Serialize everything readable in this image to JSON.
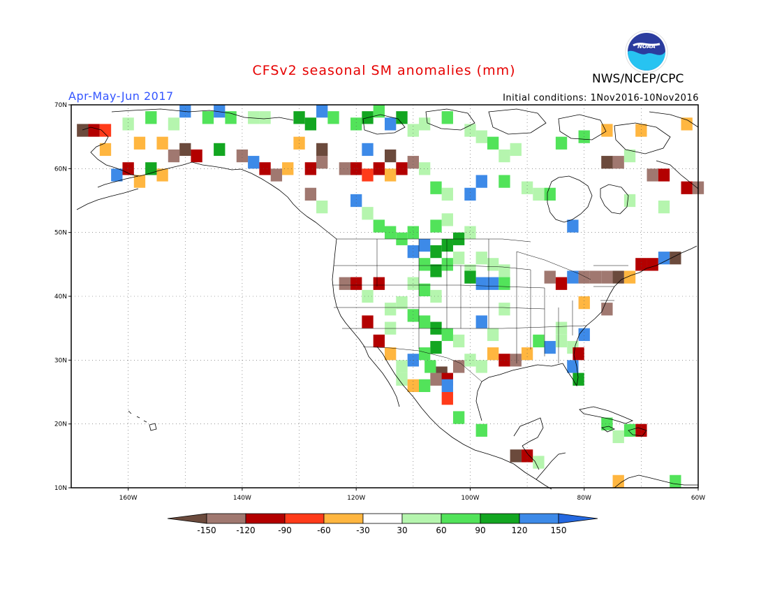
{
  "header": {
    "title": "CFSv2 seasonal SM anomalies (mm)",
    "agency": "NWS/NCEP/CPC",
    "season": "Apr-May-Jun 2017",
    "initial_conditions": "Initial conditions: 1Nov2016-10Nov2016",
    "logo_text": "NOAA"
  },
  "map": {
    "lat_labels": [
      "70N",
      "60N",
      "50N",
      "40N",
      "30N",
      "20N",
      "10N"
    ],
    "lon_labels": [
      "160W",
      "140W",
      "120W",
      "100W",
      "80W",
      "60W"
    ],
    "extent": {
      "lon": [
        -170,
        -60
      ],
      "lat": [
        10,
        70
      ]
    },
    "grid": "dotted, every 10 degrees"
  },
  "colorbar": {
    "labels": [
      "-150",
      "-120",
      "-90",
      "-60",
      "-30",
      "30",
      "60",
      "90",
      "120",
      "150"
    ],
    "colors": [
      "#6b4a3c",
      "#a07870",
      "#b30000",
      "#ff3b1a",
      "#ffb640",
      "#ffffff",
      "#b5f5ae",
      "#52e35a",
      "#13a621",
      "#3d8ae8",
      "#2468e0"
    ]
  },
  "chart_data": {
    "type": "heatmap",
    "title": "CFSv2 seasonal SM anomalies (mm)",
    "subtitle": "Apr-May-Jun 2017",
    "units": "mm",
    "bins": [
      {
        "range": "< -150",
        "color": "#6b4a3c"
      },
      {
        "range": "-150 to -120",
        "color": "#a07870"
      },
      {
        "range": "-120 to -90",
        "color": "#b30000"
      },
      {
        "range": "-90 to -60",
        "color": "#ff3b1a"
      },
      {
        "range": "-60 to -30",
        "color": "#ffb640"
      },
      {
        "range": "-30 to 30",
        "color": "#ffffff"
      },
      {
        "range": "30 to 60",
        "color": "#b5f5ae"
      },
      {
        "range": "60 to 90",
        "color": "#52e35a"
      },
      {
        "range": "90 to 120",
        "color": "#13a621"
      },
      {
        "range": "120 to 150",
        "color": "#3d8ae8"
      },
      {
        "range": "> 150",
        "color": "#2468e0"
      }
    ],
    "cells": [
      {
        "lon": -110,
        "lat": 47,
        "v": 130
      },
      {
        "lon": -108,
        "lat": 48,
        "v": 130
      },
      {
        "lon": -106,
        "lat": 47,
        "v": 100
      },
      {
        "lon": -104,
        "lat": 48,
        "v": 100
      },
      {
        "lon": -102,
        "lat": 49,
        "v": 95
      },
      {
        "lon": -112,
        "lat": 49,
        "v": 70
      },
      {
        "lon": -110,
        "lat": 50,
        "v": 80
      },
      {
        "lon": -106,
        "lat": 51,
        "v": 70
      },
      {
        "lon": -104,
        "lat": 52,
        "v": 50
      },
      {
        "lon": -100,
        "lat": 50,
        "v": 50
      },
      {
        "lon": -108,
        "lat": 45,
        "v": 60
      },
      {
        "lon": -106,
        "lat": 44,
        "v": 100
      },
      {
        "lon": -104,
        "lat": 45,
        "v": 70
      },
      {
        "lon": -102,
        "lat": 46,
        "v": 45
      },
      {
        "lon": -100,
        "lat": 44,
        "v": 45
      },
      {
        "lon": -98,
        "lat": 46,
        "v": 40
      },
      {
        "lon": -96,
        "lat": 45,
        "v": 40
      },
      {
        "lon": -94,
        "lat": 44,
        "v": 40
      },
      {
        "lon": -110,
        "lat": 42,
        "v": 40
      },
      {
        "lon": -108,
        "lat": 41,
        "v": 70
      },
      {
        "lon": -106,
        "lat": 40,
        "v": 40
      },
      {
        "lon": -112,
        "lat": 39,
        "v": 45
      },
      {
        "lon": -114,
        "lat": 38,
        "v": 40
      },
      {
        "lon": -110,
        "lat": 37,
        "v": 70
      },
      {
        "lon": -108,
        "lat": 36,
        "v": 70
      },
      {
        "lon": -106,
        "lat": 35,
        "v": 90
      },
      {
        "lon": -104,
        "lat": 34,
        "v": 70
      },
      {
        "lon": -102,
        "lat": 33,
        "v": 45
      },
      {
        "lon": -106,
        "lat": 32,
        "v": 100
      },
      {
        "lon": -108,
        "lat": 31,
        "v": 70
      },
      {
        "lon": -110,
        "lat": 30,
        "v": 130
      },
      {
        "lon": -107,
        "lat": 29,
        "v": 70
      },
      {
        "lon": -105,
        "lat": 28,
        "v": -160
      },
      {
        "lon": -106,
        "lat": 27,
        "v": -130
      },
      {
        "lon": -104,
        "lat": 27,
        "v": -100
      },
      {
        "lon": -104,
        "lat": 26,
        "v": 130
      },
      {
        "lon": -102,
        "lat": 29,
        "v": -130
      },
      {
        "lon": -108,
        "lat": 26,
        "v": 70
      },
      {
        "lon": -104,
        "lat": 24,
        "v": -70
      },
      {
        "lon": -112,
        "lat": 29,
        "v": 40
      },
      {
        "lon": -114,
        "lat": 31,
        "v": -45
      },
      {
        "lon": -112,
        "lat": 27,
        "v": 45
      },
      {
        "lon": -110,
        "lat": 26,
        "v": -45
      },
      {
        "lon": -100,
        "lat": 30,
        "v": 45
      },
      {
        "lon": -98,
        "lat": 29,
        "v": 40
      },
      {
        "lon": -96,
        "lat": 31,
        "v": -45
      },
      {
        "lon": -94,
        "lat": 30,
        "v": -100
      },
      {
        "lon": -92,
        "lat": 30,
        "v": -130
      },
      {
        "lon": -90,
        "lat": 31,
        "v": -45
      },
      {
        "lon": -88,
        "lat": 33,
        "v": 70
      },
      {
        "lon": -86,
        "lat": 32,
        "v": 130
      },
      {
        "lon": -84,
        "lat": 33,
        "v": 45
      },
      {
        "lon": -82,
        "lat": 32,
        "v": 40
      },
      {
        "lon": -81,
        "lat": 31,
        "v": -100
      },
      {
        "lon": -82,
        "lat": 29,
        "v": 130
      },
      {
        "lon": -81,
        "lat": 27,
        "v": 100
      },
      {
        "lon": -80,
        "lat": 34,
        "v": 130
      },
      {
        "lon": -96,
        "lat": 34,
        "v": 40
      },
      {
        "lon": -98,
        "lat": 36,
        "v": 130
      },
      {
        "lon": -94,
        "lat": 38,
        "v": 40
      },
      {
        "lon": -98,
        "lat": 42,
        "v": 130
      },
      {
        "lon": -96,
        "lat": 42,
        "v": 130
      },
      {
        "lon": -94,
        "lat": 42,
        "v": 70
      },
      {
        "lon": -100,
        "lat": 43,
        "v": 100
      },
      {
        "lon": -120,
        "lat": 42,
        "v": -100
      },
      {
        "lon": -122,
        "lat": 42,
        "v": -130
      },
      {
        "lon": -116,
        "lat": 42,
        "v": -100
      },
      {
        "lon": -118,
        "lat": 36,
        "v": -100
      },
      {
        "lon": -116,
        "lat": 33,
        "v": -100
      },
      {
        "lon": -114,
        "lat": 35,
        "v": 40
      },
      {
        "lon": -118,
        "lat": 40,
        "v": 40
      },
      {
        "lon": -86,
        "lat": 43,
        "v": -130
      },
      {
        "lon": -84,
        "lat": 42,
        "v": -100
      },
      {
        "lon": -82,
        "lat": 43,
        "v": 130
      },
      {
        "lon": -80,
        "lat": 43,
        "v": -130
      },
      {
        "lon": -78,
        "lat": 43,
        "v": -130
      },
      {
        "lon": -76,
        "lat": 43,
        "v": -130
      },
      {
        "lon": -74,
        "lat": 43,
        "v": -160
      },
      {
        "lon": -72,
        "lat": 43,
        "v": -60
      },
      {
        "lon": -70,
        "lat": 45,
        "v": -100
      },
      {
        "lon": -68,
        "lat": 45,
        "v": -100
      },
      {
        "lon": -66,
        "lat": 46,
        "v": 130
      },
      {
        "lon": -64,
        "lat": 46,
        "v": -160
      },
      {
        "lon": -76,
        "lat": 38,
        "v": -130
      },
      {
        "lon": -80,
        "lat": 39,
        "v": -45
      },
      {
        "lon": -84,
        "lat": 35,
        "v": 40
      },
      {
        "lon": -92,
        "lat": 15,
        "v": -160
      },
      {
        "lon": -90,
        "lat": 15,
        "v": -100
      },
      {
        "lon": -88,
        "lat": 14,
        "v": 40
      },
      {
        "lon": -102,
        "lat": 21,
        "v": 70
      },
      {
        "lon": -98,
        "lat": 19,
        "v": 70
      },
      {
        "lon": -76,
        "lat": 20,
        "v": 70
      },
      {
        "lon": -74,
        "lat": 18,
        "v": 40
      },
      {
        "lon": -70,
        "lat": 19,
        "v": -100
      },
      {
        "lon": -72,
        "lat": 19,
        "v": 70
      },
      {
        "lon": -64,
        "lat": 11,
        "v": 70
      },
      {
        "lon": -74,
        "lat": 11,
        "v": -45
      },
      {
        "lon": -138,
        "lat": 68,
        "v": 40
      },
      {
        "lon": -136,
        "lat": 68,
        "v": 40
      },
      {
        "lon": -130,
        "lat": 68,
        "v": 100
      },
      {
        "lon": -128,
        "lat": 67,
        "v": 100
      },
      {
        "lon": -126,
        "lat": 69,
        "v": 130
      },
      {
        "lon": -124,
        "lat": 68,
        "v": 70
      },
      {
        "lon": -120,
        "lat": 67,
        "v": 70
      },
      {
        "lon": -118,
        "lat": 68,
        "v": 100
      },
      {
        "lon": -116,
        "lat": 69,
        "v": 70
      },
      {
        "lon": -114,
        "lat": 67,
        "v": 130
      },
      {
        "lon": -112,
        "lat": 68,
        "v": 100
      },
      {
        "lon": -110,
        "lat": 66,
        "v": 40
      },
      {
        "lon": -108,
        "lat": 67,
        "v": 40
      },
      {
        "lon": -104,
        "lat": 68,
        "v": 70
      },
      {
        "lon": -100,
        "lat": 66,
        "v": 40
      },
      {
        "lon": -98,
        "lat": 65,
        "v": 40
      },
      {
        "lon": -96,
        "lat": 64,
        "v": 70
      },
      {
        "lon": -94,
        "lat": 62,
        "v": 40
      },
      {
        "lon": -92,
        "lat": 63,
        "v": 40
      },
      {
        "lon": -146,
        "lat": 68,
        "v": 70
      },
      {
        "lon": -150,
        "lat": 69,
        "v": 130
      },
      {
        "lon": -152,
        "lat": 67,
        "v": 40
      },
      {
        "lon": -156,
        "lat": 68,
        "v": 70
      },
      {
        "lon": -160,
        "lat": 67,
        "v": 40
      },
      {
        "lon": -144,
        "lat": 69,
        "v": 130
      },
      {
        "lon": -142,
        "lat": 68,
        "v": 70
      },
      {
        "lon": -122,
        "lat": 60,
        "v": -130
      },
      {
        "lon": -120,
        "lat": 60,
        "v": -100
      },
      {
        "lon": -118,
        "lat": 59,
        "v": -70
      },
      {
        "lon": -116,
        "lat": 60,
        "v": -100
      },
      {
        "lon": -114,
        "lat": 59,
        "v": -45
      },
      {
        "lon": -112,
        "lat": 60,
        "v": -100
      },
      {
        "lon": -110,
        "lat": 61,
        "v": -130
      },
      {
        "lon": -126,
        "lat": 61,
        "v": -130
      },
      {
        "lon": -128,
        "lat": 60,
        "v": -100
      },
      {
        "lon": -132,
        "lat": 60,
        "v": -45
      },
      {
        "lon": -134,
        "lat": 59,
        "v": -130
      },
      {
        "lon": -136,
        "lat": 60,
        "v": -100
      },
      {
        "lon": -138,
        "lat": 61,
        "v": 130
      },
      {
        "lon": -140,
        "lat": 62,
        "v": -130
      },
      {
        "lon": -144,
        "lat": 63,
        "v": 100
      },
      {
        "lon": -148,
        "lat": 62,
        "v": -100
      },
      {
        "lon": -150,
        "lat": 63,
        "v": -160
      },
      {
        "lon": -152,
        "lat": 62,
        "v": -130
      },
      {
        "lon": -154,
        "lat": 59,
        "v": -45
      },
      {
        "lon": -156,
        "lat": 60,
        "v": 100
      },
      {
        "lon": -158,
        "lat": 58,
        "v": -45
      },
      {
        "lon": -160,
        "lat": 60,
        "v": -100
      },
      {
        "lon": -162,
        "lat": 59,
        "v": 130
      },
      {
        "lon": -164,
        "lat": 63,
        "v": -45
      },
      {
        "lon": -166,
        "lat": 66,
        "v": -100
      },
      {
        "lon": -168,
        "lat": 66,
        "v": -160
      },
      {
        "lon": -164,
        "lat": 66,
        "v": -70
      },
      {
        "lon": -158,
        "lat": 64,
        "v": -45
      },
      {
        "lon": -154,
        "lat": 64,
        "v": -45
      },
      {
        "lon": -130,
        "lat": 64,
        "v": -45
      },
      {
        "lon": -126,
        "lat": 63,
        "v": -160
      },
      {
        "lon": -118,
        "lat": 63,
        "v": 130
      },
      {
        "lon": -114,
        "lat": 62,
        "v": -160
      },
      {
        "lon": -108,
        "lat": 60,
        "v": 40
      },
      {
        "lon": -106,
        "lat": 57,
        "v": 70
      },
      {
        "lon": -104,
        "lat": 56,
        "v": 40
      },
      {
        "lon": -100,
        "lat": 56,
        "v": 130
      },
      {
        "lon": -98,
        "lat": 58,
        "v": 130
      },
      {
        "lon": -94,
        "lat": 58,
        "v": 70
      },
      {
        "lon": -90,
        "lat": 57,
        "v": 40
      },
      {
        "lon": -88,
        "lat": 56,
        "v": 40
      },
      {
        "lon": -86,
        "lat": 56,
        "v": 70
      },
      {
        "lon": -82,
        "lat": 51,
        "v": 130
      },
      {
        "lon": -76,
        "lat": 61,
        "v": -160
      },
      {
        "lon": -74,
        "lat": 61,
        "v": -130
      },
      {
        "lon": -72,
        "lat": 62,
        "v": 40
      },
      {
        "lon": -68,
        "lat": 59,
        "v": -130
      },
      {
        "lon": -66,
        "lat": 59,
        "v": -100
      },
      {
        "lon": -62,
        "lat": 57,
        "v": -100
      },
      {
        "lon": -60,
        "lat": 57,
        "v": -130
      },
      {
        "lon": -72,
        "lat": 55,
        "v": 40
      },
      {
        "lon": -66,
        "lat": 54,
        "v": 40
      },
      {
        "lon": -76,
        "lat": 66,
        "v": -45
      },
      {
        "lon": -70,
        "lat": 66,
        "v": -45
      },
      {
        "lon": -62,
        "lat": 67,
        "v": -45
      },
      {
        "lon": -80,
        "lat": 65,
        "v": 70
      },
      {
        "lon": -84,
        "lat": 64,
        "v": 70
      },
      {
        "lon": -128,
        "lat": 56,
        "v": -130
      },
      {
        "lon": -126,
        "lat": 54,
        "v": 40
      },
      {
        "lon": -120,
        "lat": 55,
        "v": 130
      },
      {
        "lon": -118,
        "lat": 53,
        "v": 40
      },
      {
        "lon": -116,
        "lat": 51,
        "v": 70
      },
      {
        "lon": -114,
        "lat": 50,
        "v": 70
      }
    ]
  }
}
